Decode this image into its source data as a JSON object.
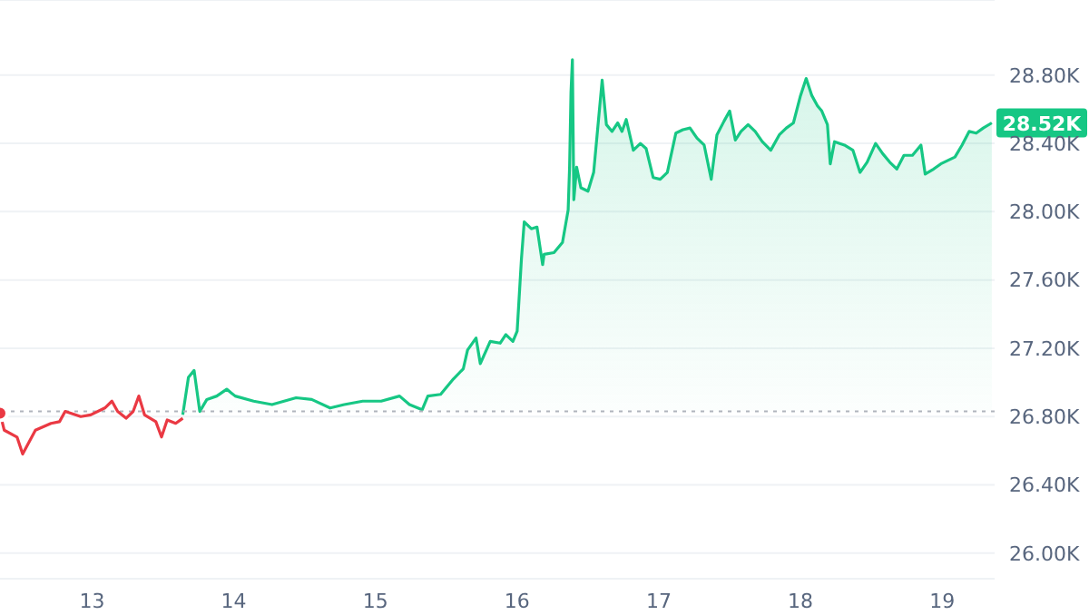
{
  "chart_data": {
    "type": "line",
    "xlim": [
      12.35,
      19.37
    ],
    "xticks": [
      13,
      14,
      15,
      16,
      17,
      18,
      19
    ],
    "ylim": [
      25850,
      29240
    ],
    "yticks": [
      {
        "value": 26000,
        "label": "26.00K"
      },
      {
        "value": 26400,
        "label": "26.40K"
      },
      {
        "value": 26800,
        "label": "26.80K"
      },
      {
        "value": 27200,
        "label": "27.20K"
      },
      {
        "value": 27600,
        "label": "27.60K"
      },
      {
        "value": 28000,
        "label": "28.00K"
      },
      {
        "value": 28400,
        "label": "28.40K"
      },
      {
        "value": 28800,
        "label": "28.80K"
      }
    ],
    "grid": "y",
    "marker": "none",
    "legend": false,
    "series": [
      {
        "color": "#ea3943",
        "x": [
          12.35,
          12.38,
          12.47,
          12.51,
          12.6,
          12.71,
          12.77,
          12.81,
          12.92,
          12.99,
          13.09,
          13.14,
          13.18,
          13.24,
          13.29,
          13.33,
          13.37,
          13.45,
          13.49,
          13.53,
          13.59,
          13.64
        ],
        "values": [
          26820,
          26720,
          26680,
          26580,
          26720,
          26760,
          26770,
          26830,
          26800,
          26810,
          26850,
          26890,
          26830,
          26790,
          26830,
          26920,
          26810,
          26770,
          26680,
          26780,
          26760,
          26790
        ]
      },
      {
        "type": "area",
        "color": "#16c784",
        "x": [
          13.64,
          13.68,
          13.72,
          13.76,
          13.81,
          13.88,
          13.95,
          14.01,
          14.14,
          14.27,
          14.44,
          14.55,
          14.68,
          14.78,
          14.91,
          15.04,
          15.17,
          15.24,
          15.33,
          15.37,
          15.46,
          15.55,
          15.62,
          15.65,
          15.71,
          15.74,
          15.81,
          15.88,
          15.92,
          15.97,
          16.0,
          16.03,
          16.05,
          16.1,
          16.14,
          16.18,
          16.19,
          16.26,
          16.32,
          16.36,
          16.37,
          16.38,
          16.39,
          16.4,
          16.42,
          16.45,
          16.5,
          16.54,
          16.56,
          16.6,
          16.63,
          16.67,
          16.71,
          16.74,
          16.77,
          16.82,
          16.87,
          16.91,
          16.96,
          17.01,
          17.06,
          17.12,
          17.17,
          17.22,
          17.27,
          17.32,
          17.37,
          17.41,
          17.46,
          17.5,
          17.54,
          17.58,
          17.63,
          17.68,
          17.73,
          17.79,
          17.85,
          17.9,
          17.95,
          18.0,
          18.04,
          18.08,
          18.12,
          18.15,
          18.19,
          18.21,
          18.24,
          18.31,
          18.37,
          18.42,
          18.47,
          18.53,
          18.58,
          18.63,
          18.68,
          18.73,
          18.79,
          18.85,
          18.88,
          18.94,
          18.99,
          19.04,
          19.09,
          19.14,
          19.19,
          19.24,
          19.29,
          19.35
        ],
        "values": [
          26810,
          27030,
          27070,
          26830,
          26900,
          26920,
          26960,
          26920,
          26890,
          26870,
          26910,
          26900,
          26850,
          26870,
          26890,
          26890,
          26920,
          26870,
          26840,
          26920,
          26930,
          27020,
          27080,
          27190,
          27260,
          27110,
          27240,
          27230,
          27280,
          27240,
          27300,
          27720,
          27940,
          27900,
          27910,
          27690,
          27750,
          27760,
          27820,
          28010,
          28260,
          28700,
          28890,
          28070,
          28260,
          28140,
          28120,
          28230,
          28410,
          28770,
          28510,
          28470,
          28520,
          28470,
          28540,
          28360,
          28400,
          28370,
          28200,
          28190,
          28230,
          28460,
          28480,
          28490,
          28430,
          28390,
          28190,
          28450,
          28530,
          28590,
          28420,
          28470,
          28510,
          28470,
          28410,
          28360,
          28450,
          28490,
          28520,
          28680,
          28780,
          28680,
          28620,
          28590,
          28510,
          28280,
          28410,
          28390,
          28360,
          28230,
          28290,
          28400,
          28340,
          28290,
          28250,
          28330,
          28330,
          28390,
          28220,
          28250,
          28280,
          28300,
          28320,
          28390,
          28470,
          28460,
          28490,
          28520
        ]
      }
    ],
    "ref_lines": [
      {
        "axis": "y",
        "value": 26830,
        "color": "#b0b4bd",
        "line_style": "dotted"
      }
    ],
    "annotations": [
      "28.52K"
    ]
  }
}
